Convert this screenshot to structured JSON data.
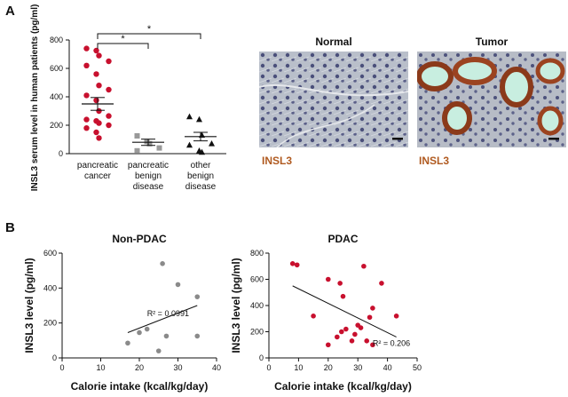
{
  "panel_a_label": "A",
  "panel_b_label": "B",
  "microscopy": {
    "normal_title": "Normal",
    "tumor_title": "Tumor",
    "normal_stain_label": "INSL3",
    "tumor_stain_label": "INSL3"
  },
  "colors": {
    "cancer": "#c8102e",
    "benign": "#999999",
    "other": "#111111",
    "stain_label": "#b05a20"
  },
  "chart_data": [
    {
      "type": "scatter",
      "title": "",
      "ylabel": "INSL3 serum level in human patients (pg/ml)",
      "ylim": [
        0,
        800
      ],
      "yticks": [
        0,
        200,
        400,
        600,
        800
      ],
      "categories": [
        {
          "lines": [
            "pancreatic",
            "cancer"
          ],
          "marker": "circle",
          "mean": 350,
          "sem": 45,
          "values": [
            740,
            725,
            690,
            650,
            620,
            560,
            480,
            450,
            410,
            375,
            300,
            265,
            240,
            230,
            215,
            200,
            180,
            150,
            110
          ]
        },
        {
          "lines": [
            "pancreatic",
            "benign",
            "disease"
          ],
          "marker": "square",
          "mean": 80,
          "sem": 22,
          "values": [
            125,
            85,
            70,
            40,
            20
          ]
        },
        {
          "lines": [
            "other",
            "benign",
            "disease"
          ],
          "marker": "triangle",
          "mean": 120,
          "sem": 30,
          "values": [
            260,
            240,
            130,
            70,
            60,
            20,
            10
          ]
        }
      ],
      "significance": [
        {
          "from": 0,
          "to": 1,
          "label": "*"
        },
        {
          "from": 0,
          "to": 2,
          "label": "*"
        }
      ]
    },
    {
      "type": "scatter",
      "title": "Non-PDAC",
      "xlabel": "Calorie intake (kcal/kg/day)",
      "ylabel": "INSL3 level (pg/ml)",
      "xlim": [
        0,
        40
      ],
      "ylim": [
        0,
        600
      ],
      "xticks": [
        0,
        10,
        20,
        30,
        40
      ],
      "yticks": [
        0,
        200,
        400,
        600
      ],
      "points": [
        {
          "x": 17,
          "y": 85
        },
        {
          "x": 20,
          "y": 145
        },
        {
          "x": 22,
          "y": 165
        },
        {
          "x": 25,
          "y": 40
        },
        {
          "x": 26,
          "y": 540
        },
        {
          "x": 27,
          "y": 125
        },
        {
          "x": 30,
          "y": 420
        },
        {
          "x": 35,
          "y": 350
        },
        {
          "x": 35,
          "y": 125
        }
      ],
      "fit": [
        {
          "x": 17,
          "y": 145
        },
        {
          "x": 35,
          "y": 300
        }
      ],
      "annotation": "R² = 0.0991",
      "annotation_at": {
        "x": 22,
        "y": 240
      }
    },
    {
      "type": "scatter",
      "title": "PDAC",
      "xlabel": "Calorie intake (kcal/kg/day)",
      "ylabel": "INSL3 level (pg/ml)",
      "xlim": [
        0,
        50
      ],
      "ylim": [
        0,
        800
      ],
      "xticks": [
        0,
        10,
        20,
        30,
        40,
        50
      ],
      "yticks": [
        0,
        200,
        400,
        600,
        800
      ],
      "points": [
        {
          "x": 8,
          "y": 720
        },
        {
          "x": 9.5,
          "y": 710
        },
        {
          "x": 20,
          "y": 600
        },
        {
          "x": 15,
          "y": 320
        },
        {
          "x": 20,
          "y": 100
        },
        {
          "x": 23,
          "y": 160
        },
        {
          "x": 24,
          "y": 570
        },
        {
          "x": 24.5,
          "y": 200
        },
        {
          "x": 25,
          "y": 470
        },
        {
          "x": 26,
          "y": 220
        },
        {
          "x": 28,
          "y": 130
        },
        {
          "x": 29,
          "y": 180
        },
        {
          "x": 30,
          "y": 250
        },
        {
          "x": 31,
          "y": 230
        },
        {
          "x": 32,
          "y": 700
        },
        {
          "x": 33,
          "y": 130
        },
        {
          "x": 34,
          "y": 310
        },
        {
          "x": 35,
          "y": 380
        },
        {
          "x": 35,
          "y": 100
        },
        {
          "x": 38,
          "y": 570
        },
        {
          "x": 43,
          "y": 320
        }
      ],
      "fit": [
        {
          "x": 8,
          "y": 550
        },
        {
          "x": 43,
          "y": 160
        }
      ],
      "annotation": "R² = 0.206",
      "annotation_at": {
        "x": 35,
        "y": 90
      }
    }
  ]
}
